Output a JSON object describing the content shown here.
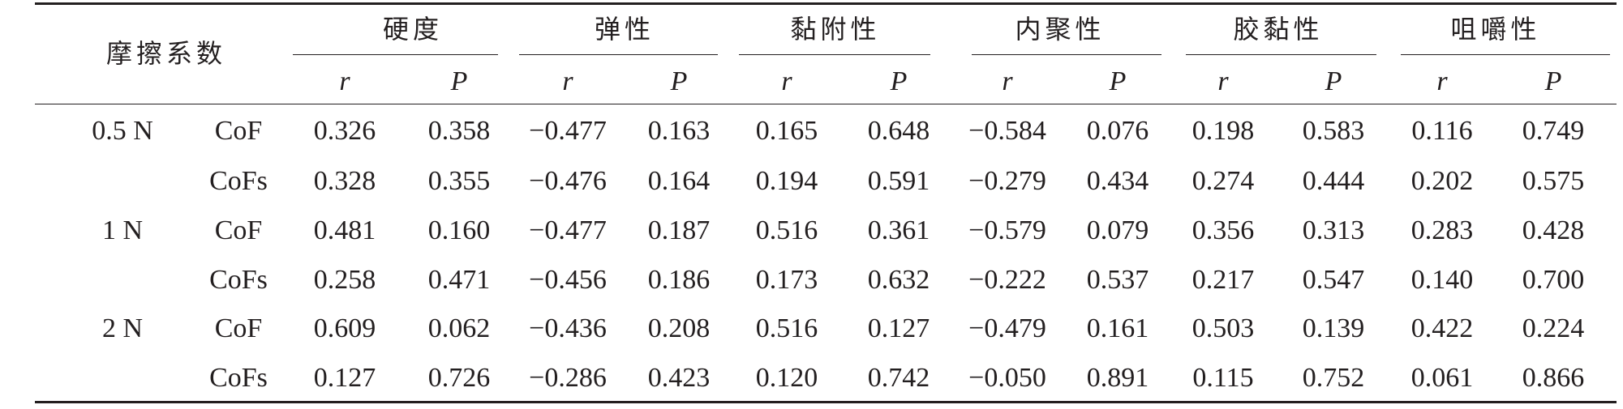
{
  "table": {
    "row_header": "摩擦系数",
    "groups": [
      "硬度",
      "弹性",
      "黏附性",
      "内聚性",
      "胶黏性",
      "咀嚼性"
    ],
    "subheaders": [
      "r",
      "P"
    ],
    "rows": [
      {
        "load": "0.5 N",
        "coef": "CoF",
        "values": [
          "0.326",
          "0.358",
          "−0.477",
          "0.163",
          "0.165",
          "0.648",
          "−0.584",
          "0.076",
          "0.198",
          "0.583",
          "0.116",
          "0.749"
        ]
      },
      {
        "load": "",
        "coef": "CoFs",
        "values": [
          "0.328",
          "0.355",
          "−0.476",
          "0.164",
          "0.194",
          "0.591",
          "−0.279",
          "0.434",
          "0.274",
          "0.444",
          "0.202",
          "0.575"
        ]
      },
      {
        "load": "1 N",
        "coef": "CoF",
        "values": [
          "0.481",
          "0.160",
          "−0.477",
          "0.187",
          "0.516",
          "0.361",
          "−0.579",
          "0.079",
          "0.356",
          "0.313",
          "0.283",
          "0.428"
        ]
      },
      {
        "load": "",
        "coef": "CoFs",
        "values": [
          "0.258",
          "0.471",
          "−0.456",
          "0.186",
          "0.173",
          "0.632",
          "−0.222",
          "0.537",
          "0.217",
          "0.547",
          "0.140",
          "0.700"
        ]
      },
      {
        "load": "2 N",
        "coef": "CoF",
        "values": [
          "0.609",
          "0.062",
          "−0.436",
          "0.208",
          "0.516",
          "0.127",
          "−0.479",
          "0.161",
          "0.503",
          "0.139",
          "0.422",
          "0.224"
        ]
      },
      {
        "load": "",
        "coef": "CoFs",
        "values": [
          "0.127",
          "0.726",
          "−0.286",
          "0.423",
          "0.120",
          "0.742",
          "−0.050",
          "0.891",
          "0.115",
          "0.752",
          "0.061",
          "0.866"
        ]
      }
    ]
  }
}
